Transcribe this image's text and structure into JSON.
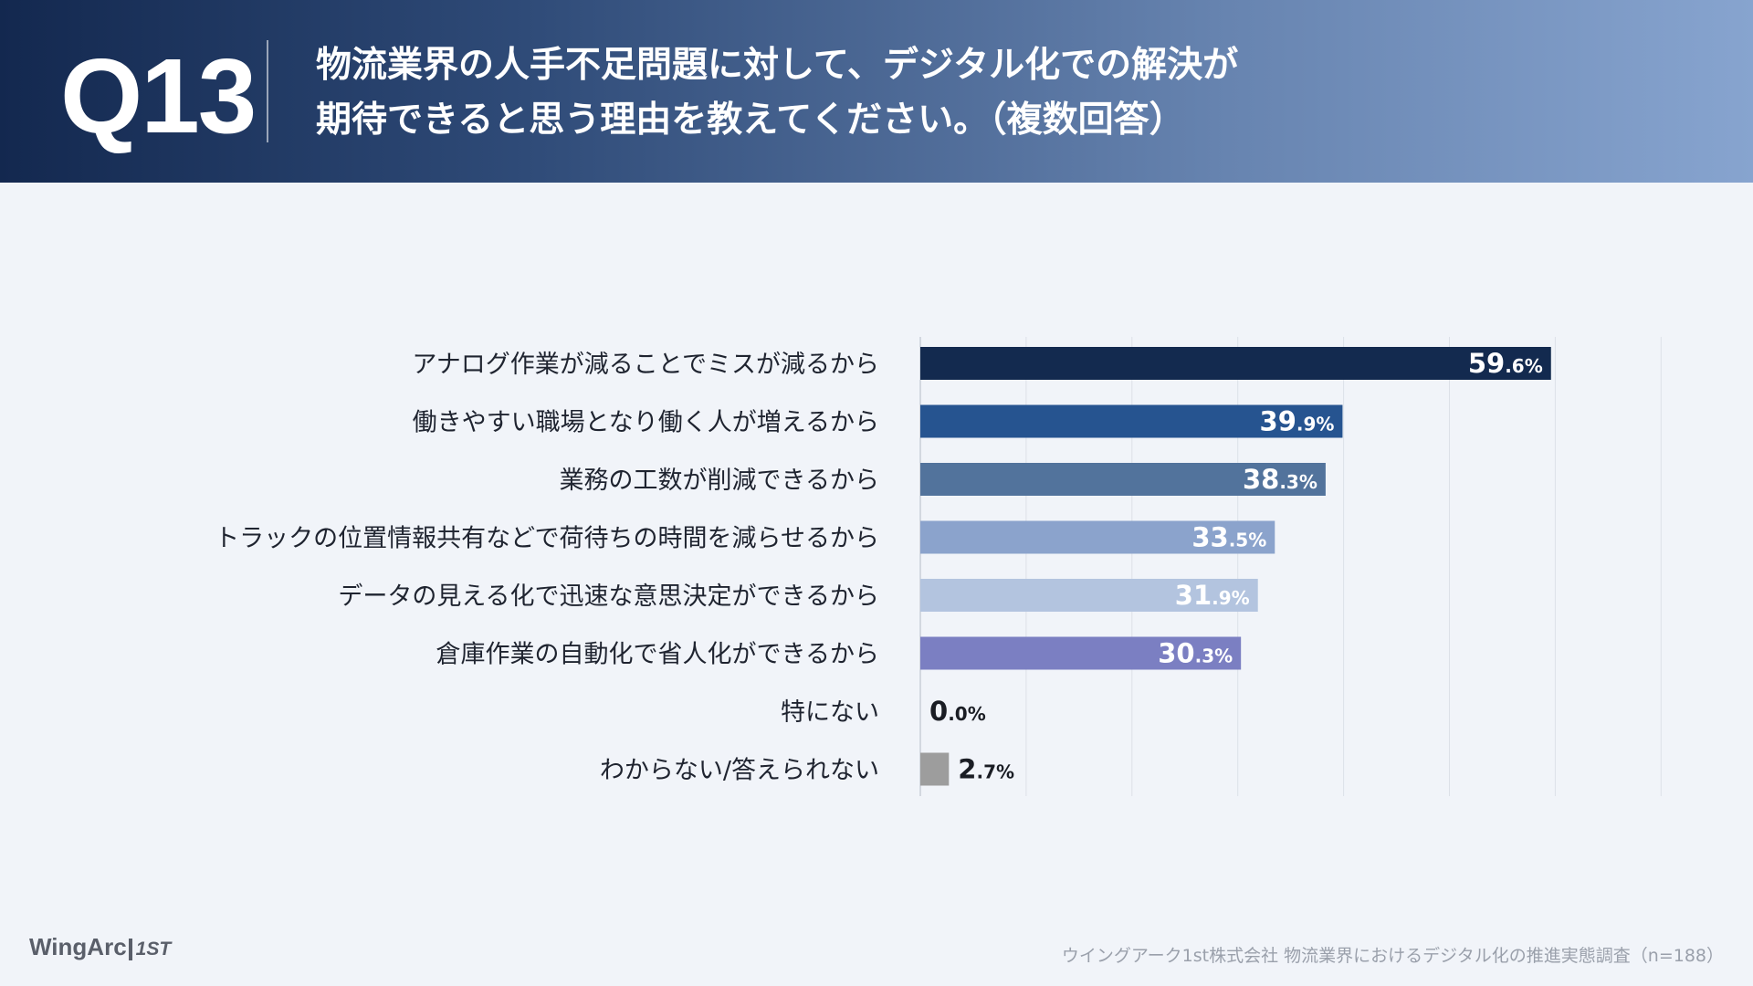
{
  "header": {
    "question_number": "Q13",
    "title_line1": "物流業界の人手不足問題に対して、デジタル化での解決が",
    "title_line2": "期待できると思う理由を教えてください。（複数回答）"
  },
  "chart_data": {
    "type": "bar",
    "orientation": "horizontal",
    "unit": "%",
    "xlim": [
      0,
      80
    ],
    "grid_step": 10,
    "categories": [
      "アナログ作業が減ることでミスが減るから",
      "働きやすい職場となり働く人が増えるから",
      "業務の工数が削減できるから",
      "トラックの位置情報共有などで荷待ちの時間を減らせるから",
      "データの見える化で迅速な意思決定ができるから",
      "倉庫作業の自動化で省人化ができるから",
      "特にない",
      "わからない/答えられない"
    ],
    "values": [
      59.6,
      39.9,
      38.3,
      33.5,
      31.9,
      30.3,
      0.0,
      2.7
    ],
    "colors": [
      "#132a4f",
      "#265490",
      "#52739c",
      "#8ba3cc",
      "#b3c4df",
      "#7b7fc2",
      "#9d9d9d",
      "#9d9d9d"
    ],
    "label_colors": [
      "#ffffff",
      "#ffffff",
      "#ffffff",
      "#ffffff",
      "#ffffff",
      "#ffffff",
      "#1a1d24",
      "#1a1d24"
    ]
  },
  "footer": {
    "logo_text": "WingArc",
    "logo_mark": "1ST",
    "source": "ウイングアーク1st株式会社 物流業界におけるデジタル化の推進実態調査（n=188）"
  }
}
